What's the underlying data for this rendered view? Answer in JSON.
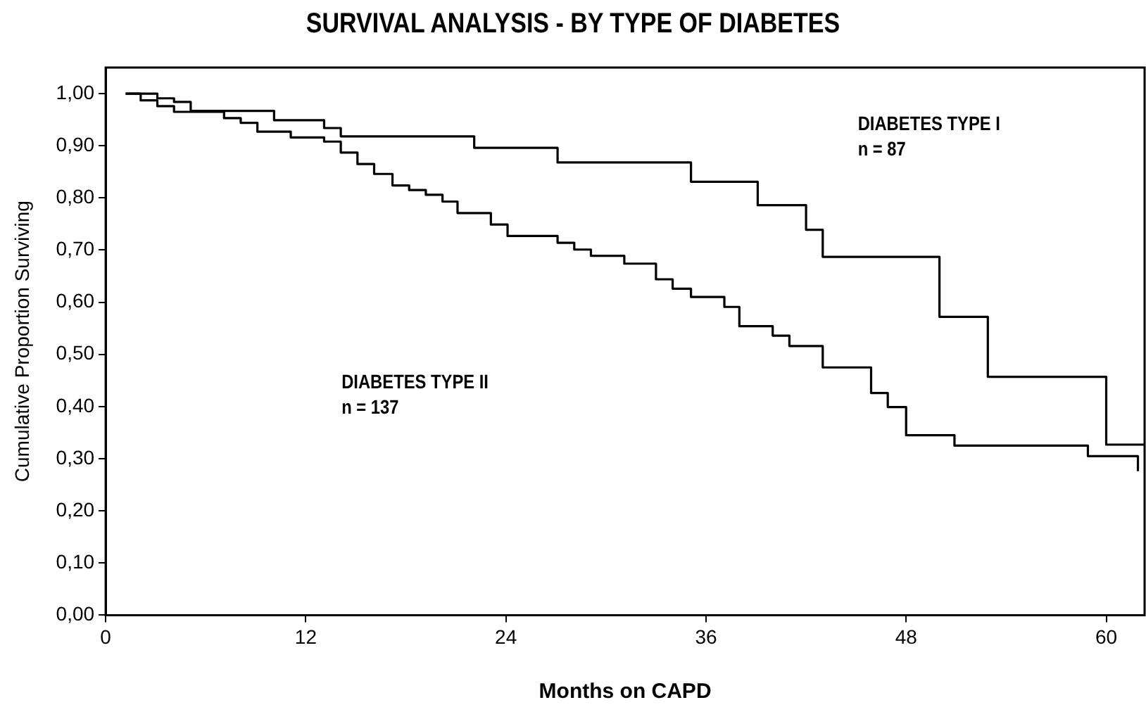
{
  "chart_data": {
    "type": "step",
    "title": "SURVIVAL ANALYSIS - BY TYPE OF DIABETES",
    "xlabel": "Months on CAPD",
    "ylabel": "Cumulative Proportion Surviving",
    "series": [
      {
        "color": "#000000",
        "x": [
          1.2,
          3.1,
          4.1,
          5.1,
          10.1,
          13.1,
          14.1,
          22.1,
          27.1,
          35.1,
          39.1,
          42.0,
          43.0,
          50.0,
          52.9,
          60.0,
          62.3
        ],
        "values": [
          1.0,
          0.991,
          0.984,
          0.967,
          0.949,
          0.934,
          0.918,
          0.896,
          0.868,
          0.831,
          0.786,
          0.739,
          0.687,
          0.572,
          0.457,
          0.327,
          0.327
        ]
      },
      {
        "color": "#000000",
        "x": [
          1.2,
          2.1,
          3.1,
          4.1,
          7.1,
          8.1,
          9.1,
          11.1,
          13.1,
          14.1,
          15.1,
          16.1,
          17.2,
          18.2,
          19.2,
          20.2,
          21.1,
          23.1,
          24.1,
          27.1,
          28.1,
          29.1,
          31.1,
          33.0,
          34.0,
          35.1,
          37.1,
          38.0,
          40.0,
          41.0,
          43.0,
          45.9,
          46.9,
          48.0,
          50.9,
          58.9,
          61.9
        ],
        "values": [
          1.0,
          0.987,
          0.976,
          0.965,
          0.953,
          0.944,
          0.927,
          0.916,
          0.908,
          0.887,
          0.865,
          0.846,
          0.824,
          0.815,
          0.806,
          0.793,
          0.771,
          0.749,
          0.727,
          0.714,
          0.701,
          0.689,
          0.674,
          0.644,
          0.626,
          0.61,
          0.591,
          0.554,
          0.536,
          0.516,
          0.475,
          0.426,
          0.399,
          0.345,
          0.325,
          0.305,
          0.276
        ]
      }
    ],
    "annotations": [
      "DIABETES TYPE I\nn = 87",
      "DIABETES TYPE II\nn = 137"
    ],
    "xlim": [
      0,
      62.3
    ],
    "xticks": [
      0,
      12,
      24,
      36,
      48,
      60
    ],
    "ylim": [
      0,
      1.05
    ],
    "yticks": [
      {
        "value": 0,
        "label": "0,00"
      },
      {
        "value": 0.1,
        "label": "0,10"
      },
      {
        "value": 0.2,
        "label": "0,20"
      },
      {
        "value": 0.3,
        "label": "0,30"
      },
      {
        "value": 0.4,
        "label": "0,40"
      },
      {
        "value": 0.5,
        "label": "0,50"
      },
      {
        "value": 0.6,
        "label": "0,60"
      },
      {
        "value": 0.7,
        "label": "0,70"
      },
      {
        "value": 0.8,
        "label": "0,80"
      },
      {
        "value": 0.9,
        "label": "0,90"
      },
      {
        "value": 1,
        "label": "1,00"
      }
    ],
    "grid": false,
    "legend": false,
    "marker": "none",
    "line_style": "solid"
  }
}
